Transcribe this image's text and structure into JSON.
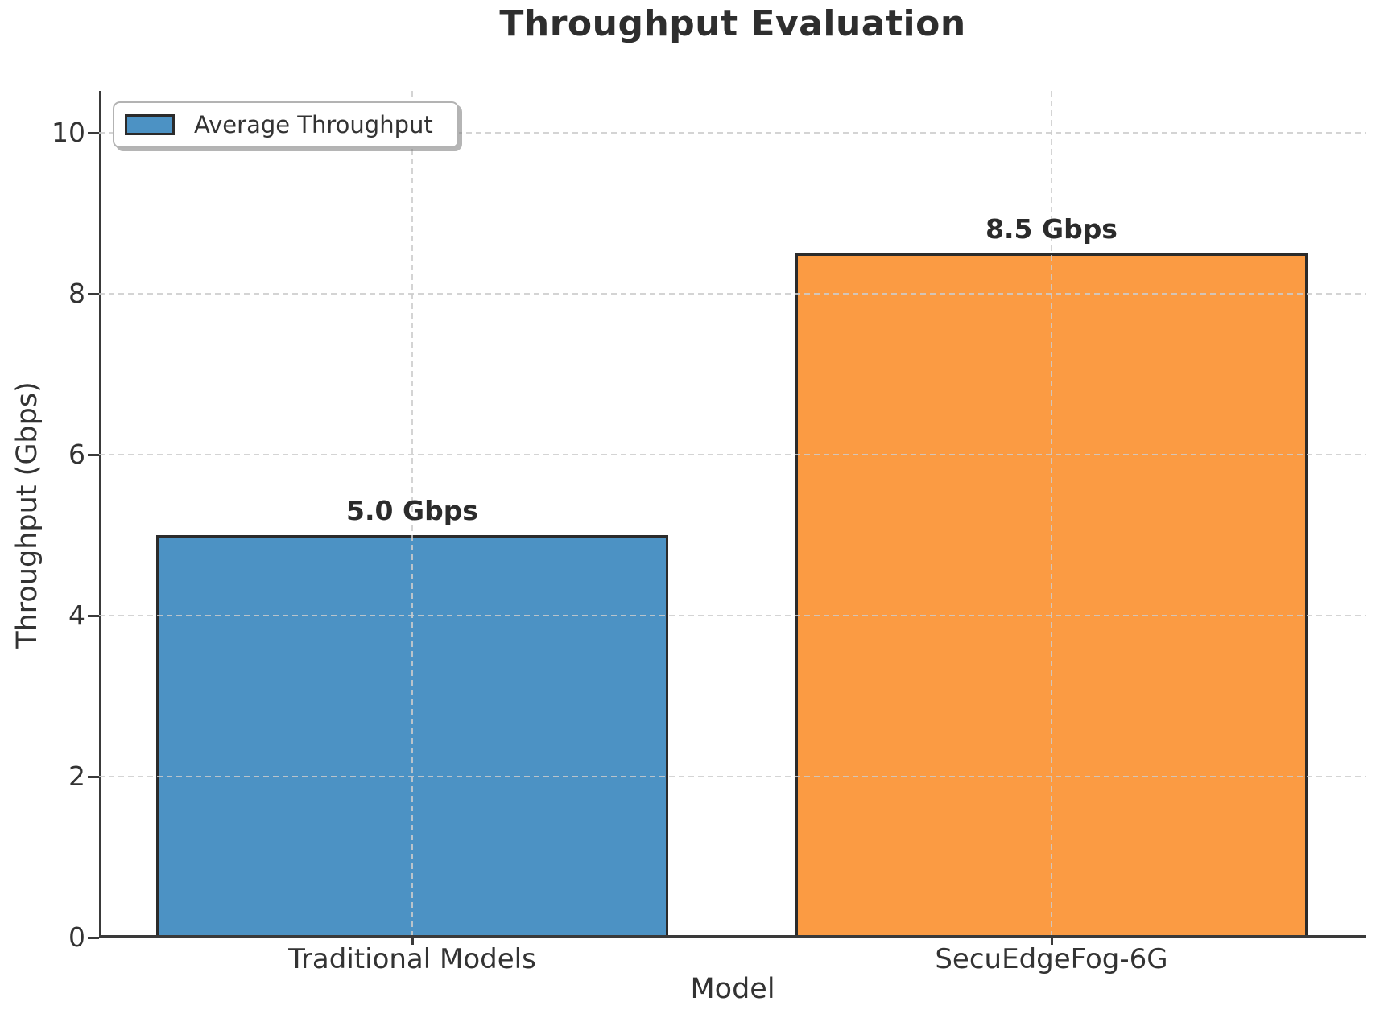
{
  "chart_data": {
    "type": "bar",
    "title": "Throughput Evaluation",
    "xlabel": "Model",
    "ylabel": "Throughput (Gbps)",
    "categories": [
      "Traditional Models",
      "SecuEdgeFog-6G"
    ],
    "series": [
      {
        "name": "Average Throughput",
        "values": [
          5.0,
          8.5
        ]
      }
    ],
    "bar_value_labels": [
      "5.0 Gbps",
      "8.5 Gbps"
    ],
    "bar_colors": [
      "#4C92C4",
      "#FB9B43"
    ],
    "bar_edge_color": "#2b2b2b",
    "yticks": [
      0,
      2,
      4,
      6,
      8,
      10
    ],
    "ytick_labels": [
      "0",
      "2",
      "4",
      "6",
      "8",
      "10"
    ],
    "ylim": [
      0,
      10.5
    ],
    "grid": "dashed light-gray horizontal lines at each y tick and vertical lines at each bar center, drawn over the bars",
    "legend": {
      "label": "Average Throughput",
      "swatch_color": "#4C92C4",
      "position": "upper left"
    },
    "axis_color": "#3a3a3a",
    "grid_color": "#cccccc",
    "text_color": "#333333",
    "title_color": "#2e2e2e"
  }
}
